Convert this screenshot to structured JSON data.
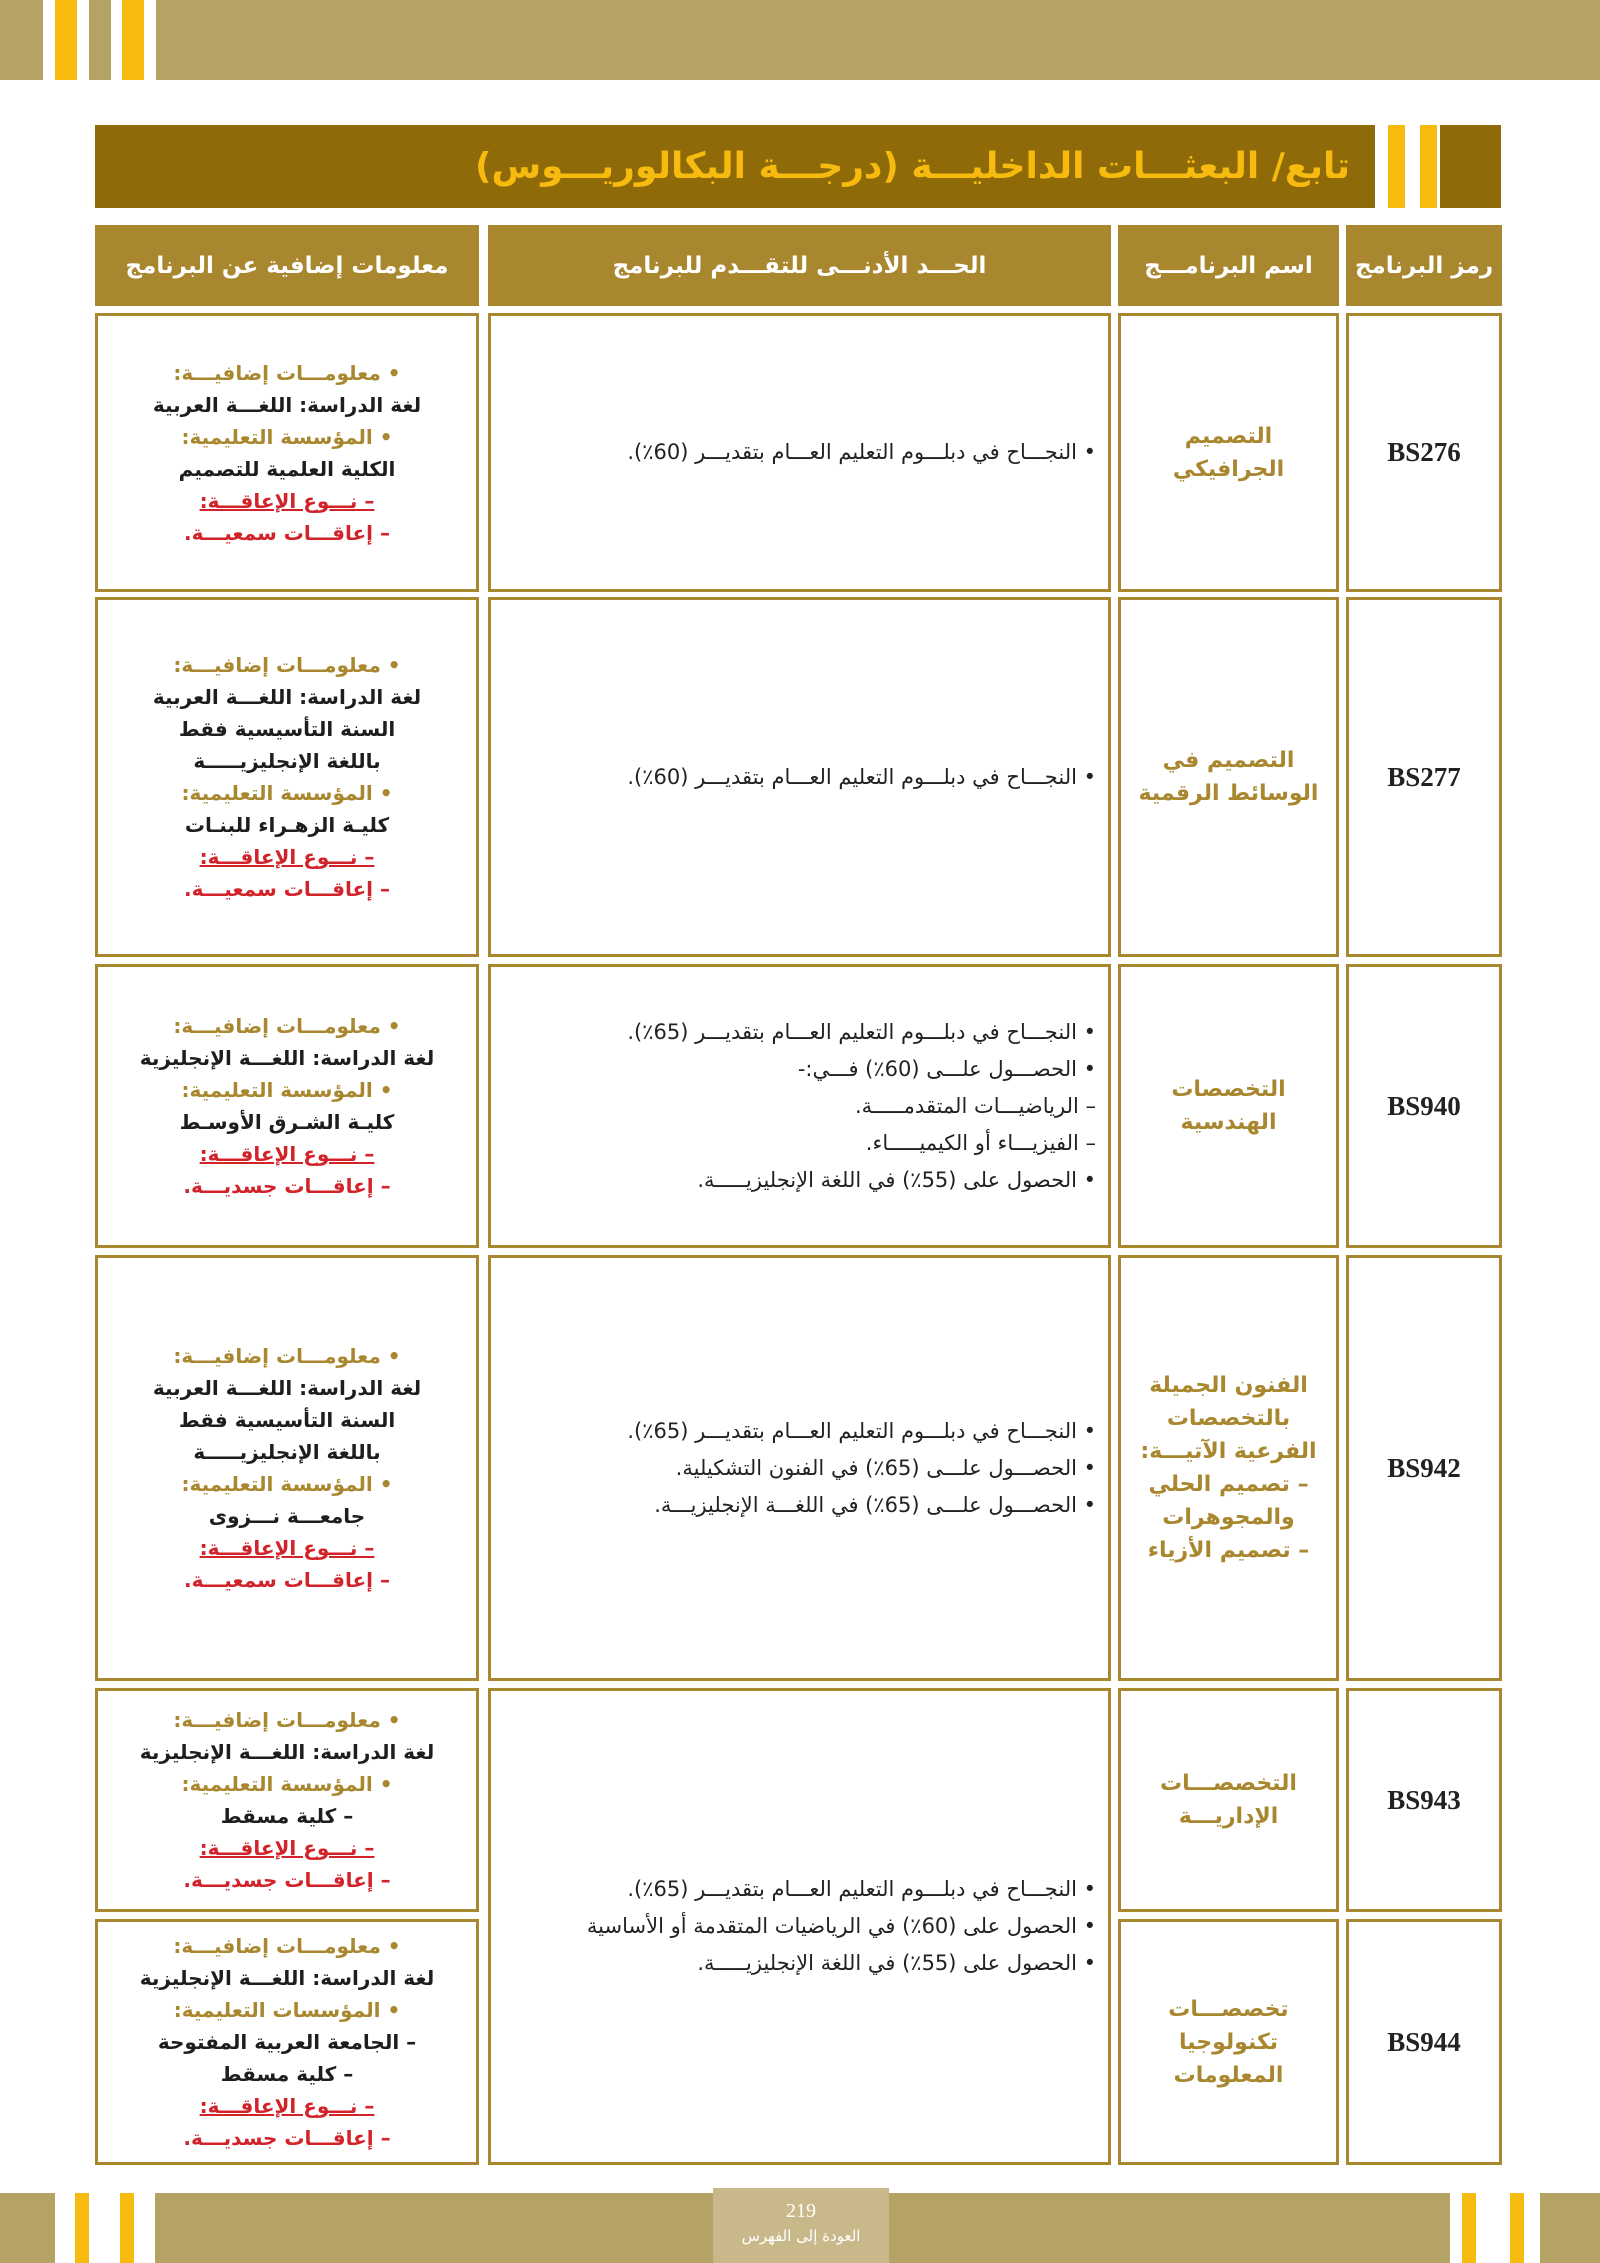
{
  "header": {
    "title": "تابع/ البعثـــات الداخليـــة (درجـــة البكالوريـــوس)"
  },
  "table": {
    "headers": [
      "رمز البرنامج",
      "اسم البرنامـــج",
      "الحـــد الأدنـــى للتقـــدم للبرنامج",
      "معلومات إضافية عن البرنامج"
    ],
    "rows": [
      {
        "code": "BS276",
        "name": [
          "التصميم",
          "الجرافيكي"
        ],
        "requirements": [
          "• النجـــاح في دبلـــوم التعليم العـــام بتقديـــر (60٪)."
        ],
        "info": [
          {
            "text": "• معلومـــات إضافيـــة:",
            "color": "#a8872f"
          },
          {
            "text": "لغة الدراسة: اللغـــة العربية",
            "color": "#1e1e1e"
          },
          {
            "text": "• المؤسسة التعليمية:",
            "color": "#a8872f"
          },
          {
            "text": "الكلية العلمية للتصميم",
            "color": "#1e1e1e"
          },
          {
            "text": "– نـــوع الإعاقـــة:",
            "color": "#d2232a",
            "underline": true
          },
          {
            "text": "– إعاقـــات سمعيـــة.",
            "color": "#d2232a"
          }
        ]
      },
      {
        "code": "BS277",
        "name": [
          "التصميم في",
          "الوسائط الرقمية"
        ],
        "requirements": [
          "• النجـــاح في دبلـــوم التعليم العـــام بتقديـــر (60٪)."
        ],
        "info": [
          {
            "text": "• معلومـــات إضافيـــة:",
            "color": "#a8872f"
          },
          {
            "text": "لغة الدراسة: اللغـــة العربية",
            "color": "#1e1e1e"
          },
          {
            "text": "السنة التأسيسية فقط",
            "color": "#1e1e1e"
          },
          {
            "text": "باللغة الإنجليزيـــــة",
            "color": "#1e1e1e"
          },
          {
            "text": "• المؤسسة التعليمية:",
            "color": "#a8872f"
          },
          {
            "text": "كليـة الزهـراء للبنـات",
            "color": "#1e1e1e"
          },
          {
            "text": "– نـــوع الإعاقـــة:",
            "color": "#d2232a",
            "underline": true
          },
          {
            "text": "– إعاقـــات سمعيـــة.",
            "color": "#d2232a"
          }
        ]
      },
      {
        "code": "BS940",
        "name": [
          "التخصصات",
          "الهندسية"
        ],
        "requirements": [
          "• النجـــاح في دبلـــوم التعليم العـــام بتقديـــر (65٪).",
          "• الحصـــول علـــى (60٪) فـــي:-",
          "– الرياضيـــات المتقدمـــــة.",
          "– الفيزيـــاء أو الكيميـــــاء.",
          "• الحصول على (55٪) في اللغة الإنجليزيـــــة."
        ],
        "info": [
          {
            "text": "• معلومـــات إضافيـــة:",
            "color": "#a8872f"
          },
          {
            "text": "لغة الدراسة: اللغـــة الإنجليزية",
            "color": "#1e1e1e"
          },
          {
            "text": "• المؤسسة التعليمية:",
            "color": "#a8872f"
          },
          {
            "text": "كليـة الشـرق الأوسـط",
            "color": "#1e1e1e"
          },
          {
            "text": "– نـــوع الإعاقـــة:",
            "color": "#d2232a",
            "underline": true
          },
          {
            "text": "– إعاقـــات جسديـــة.",
            "color": "#d2232a"
          }
        ]
      },
      {
        "code": "BS942",
        "name": [
          "الفنون الجميلة",
          "بالتخصصات",
          "الفرعية الآتيـــة:",
          "– تصميم الحلي",
          "والمجوهرات",
          "– تصميم الأزياء"
        ],
        "requirements": [
          "• النجـــاح في دبلـــوم التعليم العـــام بتقديـــر (65٪).",
          "• الحصـــول علـــى (65٪) في الفنون التشكيلية.",
          "• الحصـــول علـــى (65٪) في اللغـــة الإنجليزيـــة."
        ],
        "info": [
          {
            "text": "• معلومـــات إضافيـــة:",
            "color": "#a8872f"
          },
          {
            "text": "لغة الدراسة: اللغـــة العربية",
            "color": "#1e1e1e"
          },
          {
            "text": "السنة التأسيسية فقط",
            "color": "#1e1e1e"
          },
          {
            "text": "باللغة الإنجليزيـــــة",
            "color": "#1e1e1e"
          },
          {
            "text": "• المؤسسة التعليمية:",
            "color": "#a8872f"
          },
          {
            "text": "جامعـــة نـــزوى",
            "color": "#1e1e1e"
          },
          {
            "text": "– نـــوع الإعاقـــة:",
            "color": "#d2232a",
            "underline": true
          },
          {
            "text": "– إعاقـــات سمعيـــة.",
            "color": "#d2232a"
          }
        ]
      },
      {
        "code": "BS943",
        "name": [
          "التخصصـــات",
          "الإداريـــة"
        ],
        "requirements": [
          "• النجـــاح في دبلـــوم التعليم العـــام بتقديـــر (65٪).",
          "• الحصول على (60٪) في الرياضيات المتقدمة أو الأساسية",
          "• الحصول على (55٪) في اللغة الإنجليزيـــــة."
        ],
        "info": [
          {
            "text": "• معلومـــات إضافيـــة:",
            "color": "#a8872f"
          },
          {
            "text": "لغة الدراسة: اللغـــة الإنجليزية",
            "color": "#1e1e1e"
          },
          {
            "text": "• المؤسسة التعليمية:",
            "color": "#a8872f"
          },
          {
            "text": "– كلية مسقط",
            "color": "#1e1e1e"
          },
          {
            "text": "– نـــوع الإعاقـــة:",
            "color": "#d2232a",
            "underline": true
          },
          {
            "text": "– إعاقـــات جسديـــة.",
            "color": "#d2232a"
          }
        ]
      },
      {
        "code": "BS944",
        "name": [
          "تخصصـــات",
          "تكنولوجيا",
          "المعلومات"
        ],
        "info": [
          {
            "text": "• معلومـــات إضافيـــة:",
            "color": "#a8872f"
          },
          {
            "text": "لغة الدراسة: اللغـــة الإنجليزية",
            "color": "#1e1e1e"
          },
          {
            "text": "• المؤسسات التعليمية:",
            "color": "#a8872f"
          },
          {
            "text": "– الجامعة العربية المفتوحة",
            "color": "#1e1e1e"
          },
          {
            "text": "– كلية مسقط",
            "color": "#1e1e1e"
          },
          {
            "text": "– نـــوع الإعاقـــة:",
            "color": "#d2232a",
            "underline": true
          },
          {
            "text": "– إعاقـــات جسديـــة.",
            "color": "#d2232a"
          }
        ]
      }
    ]
  },
  "footer": {
    "page": "219",
    "link": "العودة إلى الفهرس"
  }
}
